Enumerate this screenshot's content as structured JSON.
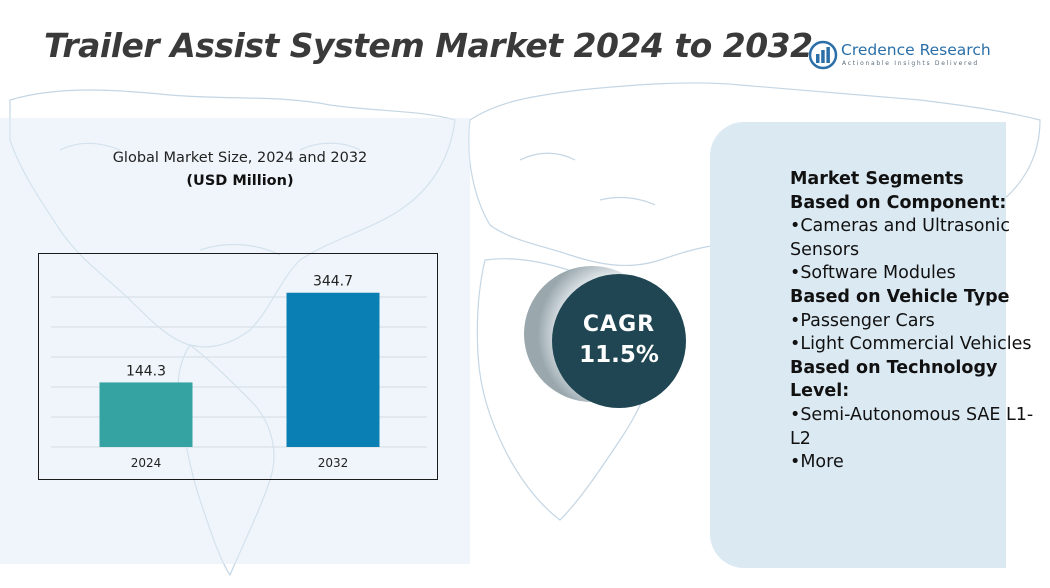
{
  "page": {
    "title": "Trailer Assist System Market 2024 to 2032"
  },
  "logo": {
    "name": "Credence Research",
    "tagline": "Actionable Insights Delivered",
    "icon": "bar-chart-logo-icon"
  },
  "chart_data": {
    "type": "bar",
    "title": "Global Market Size, 2024 and 2032",
    "ylabel": "(USD Million)",
    "categories": [
      "2024",
      "2032"
    ],
    "values": [
      144.3,
      344.7
    ],
    "value_labels": [
      "144.3",
      "344.7"
    ],
    "ylim": [
      0,
      400
    ],
    "grid": true,
    "colors": [
      "#36a3a3",
      "#0a7fb4"
    ]
  },
  "cagr": {
    "label": "CAGR",
    "value": "11.5%"
  },
  "segments": {
    "heading": "Market Segments",
    "groups": [
      {
        "title": "Based on Component:",
        "items": [
          "•Cameras and Ultrasonic Sensors",
          "•Software Modules"
        ]
      },
      {
        "title": "Based on Vehicle Type",
        "items": [
          "•Passenger Cars",
          "•Light Commercial Vehicles"
        ]
      },
      {
        "title": "Based on Technology Level:",
        "items": [
          "•Semi-Autonomous SAE L1-L2",
          "•More"
        ]
      }
    ]
  },
  "colors": {
    "title": "#3a3a3a",
    "brand": "#2a6fa8",
    "cagr_bg": "#1f4652",
    "segment_panel": "#dbe9f3"
  }
}
